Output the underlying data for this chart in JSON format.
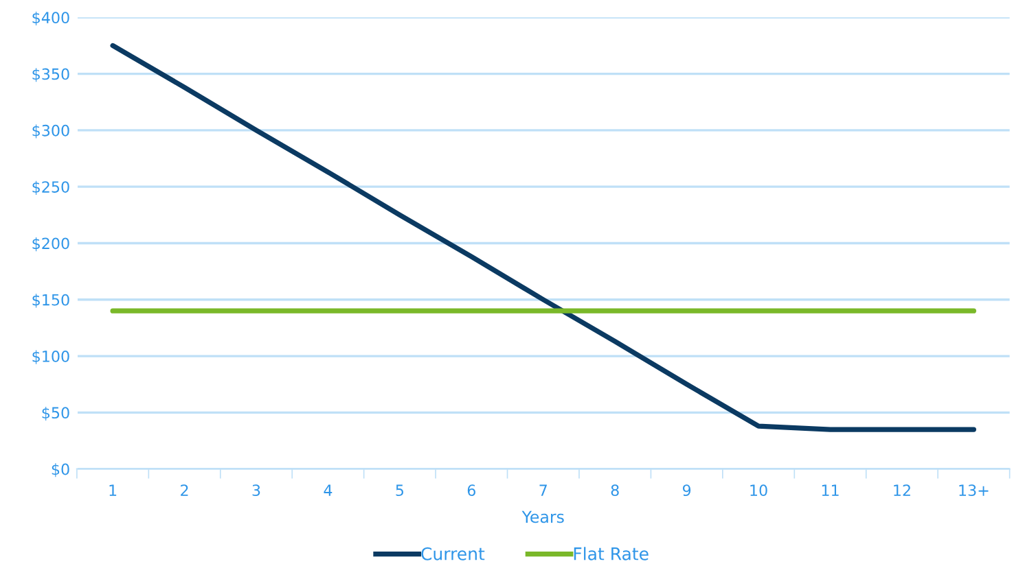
{
  "chart_data": {
    "type": "line",
    "xlabel": "Years",
    "categories": [
      "1",
      "2",
      "3",
      "4",
      "5",
      "6",
      "7",
      "8",
      "9",
      "10",
      "11",
      "12",
      "13+"
    ],
    "series": [
      {
        "name": "Current",
        "color": "#0b3a62",
        "values": [
          375,
          338,
          300,
          263,
          225,
          188,
          150,
          113,
          75,
          38,
          35,
          35,
          35
        ]
      },
      {
        "name": "Flat Rate",
        "color": "#7ab829",
        "values": [
          140,
          140,
          140,
          140,
          140,
          140,
          140,
          140,
          140,
          140,
          140,
          140,
          140
        ]
      }
    ],
    "ylim": [
      0,
      400
    ],
    "yticks": [
      {
        "value": 0,
        "label": "$0"
      },
      {
        "value": 50,
        "label": "$50"
      },
      {
        "value": 100,
        "label": "$100"
      },
      {
        "value": 150,
        "label": "$150"
      },
      {
        "value": 200,
        "label": "$200"
      },
      {
        "value": 250,
        "label": "$250"
      },
      {
        "value": 300,
        "label": "$300"
      },
      {
        "value": 350,
        "label": "$350"
      },
      {
        "value": 400,
        "label": "$400"
      }
    ],
    "grid": "y",
    "legend": "bottom",
    "marker": "none",
    "line_style": "solid"
  }
}
